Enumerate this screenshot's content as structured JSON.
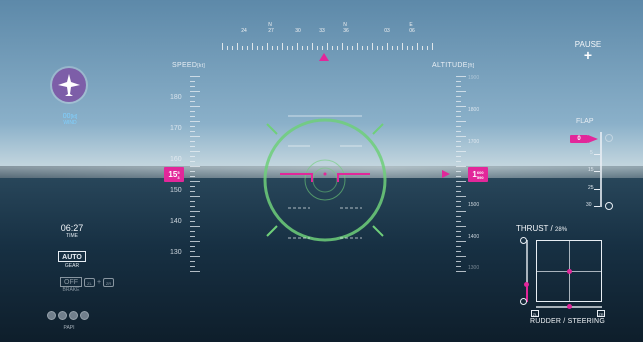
{
  "hud": {
    "heading_labels": [
      "24",
      "27",
      "30",
      "33",
      "36",
      "03",
      "06"
    ],
    "heading_n_markers": [
      "N",
      "N",
      "E"
    ],
    "speed_label": "SPEED",
    "speed_unit": "[kt]",
    "speed_ticks": [
      "180",
      "170",
      "160",
      "150",
      "140",
      "130"
    ],
    "current_speed_big": "15",
    "current_speed_small_top": "5",
    "current_speed_small_bottom": "3",
    "altitude_label": "ALTITUDE",
    "altitude_unit": "[ft]",
    "altitude_ticks": [
      "1800",
      "1700",
      "1500",
      "1400",
      "1300"
    ],
    "altitude_ticks_faint": [
      "1900"
    ],
    "current_altitude_big": "1",
    "current_altitude_small_top": "600",
    "current_altitude_small_bottom": "590"
  },
  "left_panel": {
    "wind_value": "00",
    "wind_unit": "[kt]",
    "wind_label": "WIND",
    "time_value": "06:27",
    "time_label": "TIME",
    "gear_value": "AUTO",
    "gear_label": "GEAR",
    "brake_value": "OFF",
    "brake_key1": "ZL",
    "brake_plus": "+",
    "brake_key2": "ZR",
    "brake_label": "BRAKE",
    "papi_label": "PAPI"
  },
  "right_panel": {
    "pause_label": "PAUSE",
    "pause_icon_glyph": "+",
    "flap_label": "FLAP",
    "flap_value": "0",
    "flap_ticks": [
      "5",
      "15",
      "25",
      "30"
    ],
    "thrust_label": "THRUST",
    "thrust_sep": "/",
    "thrust_value": "28",
    "thrust_unit": "%",
    "rudder_label": "RUDDER / STEERING",
    "corner_zl": "ZL",
    "corner_zr": "ZR"
  },
  "colors": {
    "accent": "#e2279a",
    "reticle": "#6fcf7a"
  },
  "icons": {
    "aircraft": "airplane-icon",
    "pause": "pause-icon"
  }
}
